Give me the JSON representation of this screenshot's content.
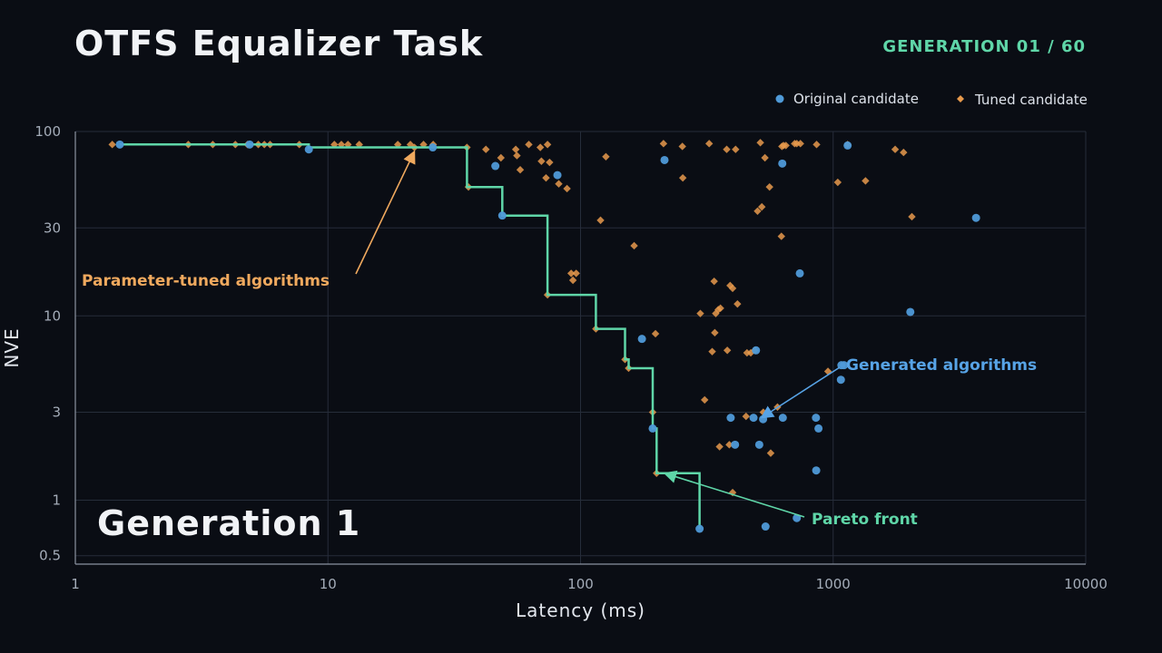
{
  "header": {
    "title": "OTFS Equalizer Task",
    "generation_counter": "GENERATION 01 / 60"
  },
  "colors": {
    "background": "#0a0d14",
    "grid": "#262d3a",
    "original": "#4f9ad8",
    "tuned": "#e89a4c",
    "pareto": "#5fd6a8",
    "tuned_label": "#f0a95e",
    "generated_label": "#57a3e6"
  },
  "chart_data": {
    "type": "scatter",
    "xlabel": "Latency (ms)",
    "ylabel": "NVE",
    "xscale": "log",
    "yscale": "log",
    "xlim": [
      1,
      10000
    ],
    "ylim": [
      0.45,
      100
    ],
    "xticks": [
      1,
      10,
      100,
      1000,
      10000
    ],
    "xtick_labels": [
      "1",
      "10",
      "100",
      "1000",
      "10000"
    ],
    "yticks": [
      0.5,
      1,
      3,
      10,
      30,
      100
    ],
    "ytick_labels": [
      "0.5",
      "1",
      "3",
      "10",
      "30",
      "100"
    ],
    "grid": true,
    "legend_position": "top-right",
    "stage_label": "Generation 1",
    "series": [
      {
        "name": "Original candidate",
        "marker": "circle",
        "points": [
          [
            1.5,
            85
          ],
          [
            4.9,
            85
          ],
          [
            8.4,
            80
          ],
          [
            26,
            82
          ],
          [
            46,
            65
          ],
          [
            49,
            35
          ],
          [
            81,
            58
          ],
          [
            175,
            7.5
          ],
          [
            193,
            2.45
          ],
          [
            215,
            70
          ],
          [
            296,
            0.7
          ],
          [
            393,
            2.8
          ],
          [
            409,
            2.0
          ],
          [
            484,
            2.8
          ],
          [
            495,
            6.5
          ],
          [
            510,
            2.0
          ],
          [
            528,
            2.75
          ],
          [
            540,
            0.72
          ],
          [
            629,
            67
          ],
          [
            632,
            2.8
          ],
          [
            718,
            0.8
          ],
          [
            738,
            17
          ],
          [
            855,
            2.8
          ],
          [
            857,
            1.45
          ],
          [
            875,
            2.45
          ],
          [
            1073,
            4.5
          ],
          [
            1078,
            5.4
          ],
          [
            1104,
            5.4
          ],
          [
            1141,
            84
          ],
          [
            2021,
            10.5
          ],
          [
            3679,
            34
          ]
        ]
      },
      {
        "name": "Tuned candidate",
        "marker": "diamond",
        "points": [
          [
            1.4,
            85
          ],
          [
            2.8,
            85
          ],
          [
            3.5,
            85
          ],
          [
            4.3,
            85
          ],
          [
            4.8,
            85
          ],
          [
            5.3,
            85
          ],
          [
            5.6,
            85
          ],
          [
            5.9,
            85
          ],
          [
            7.7,
            85
          ],
          [
            10.6,
            85
          ],
          [
            11.3,
            85
          ],
          [
            12.0,
            85
          ],
          [
            13.3,
            85
          ],
          [
            18.9,
            85
          ],
          [
            21.2,
            85
          ],
          [
            22.0,
            82
          ],
          [
            23.9,
            85
          ],
          [
            26.1,
            85
          ],
          [
            35.5,
            82
          ],
          [
            36.0,
            50
          ],
          [
            42.2,
            80
          ],
          [
            48.4,
            72
          ],
          [
            55.4,
            80
          ],
          [
            56.0,
            74
          ],
          [
            57.7,
            62
          ],
          [
            62.4,
            85
          ],
          [
            69.3,
            82
          ],
          [
            70.0,
            69
          ],
          [
            73.0,
            56
          ],
          [
            74.0,
            85
          ],
          [
            75.4,
            68
          ],
          [
            74.0,
            13
          ],
          [
            82.0,
            52
          ],
          [
            88.4,
            49
          ],
          [
            91.8,
            17
          ],
          [
            93.3,
            15.6
          ],
          [
            96.1,
            17
          ],
          [
            115,
            8.5
          ],
          [
            120,
            33
          ],
          [
            126,
            73
          ],
          [
            150,
            5.8
          ],
          [
            155,
            5.2
          ],
          [
            163,
            24
          ],
          [
            193,
            3.0
          ],
          [
            198,
            8
          ],
          [
            200,
            1.4
          ],
          [
            213,
            86
          ],
          [
            253,
            83
          ],
          [
            254,
            56
          ],
          [
            298,
            10.3
          ],
          [
            310,
            3.5
          ],
          [
            323,
            86
          ],
          [
            332,
            6.4
          ],
          [
            338,
            15.4
          ],
          [
            340,
            8.1
          ],
          [
            343,
            10.3
          ],
          [
            351,
            10.8
          ],
          [
            355,
            1.95
          ],
          [
            358,
            11
          ],
          [
            379,
            80
          ],
          [
            381,
            6.5
          ],
          [
            388,
            2.0
          ],
          [
            391,
            14.6
          ],
          [
            400,
            14.1
          ],
          [
            400,
            1.1
          ],
          [
            411,
            80
          ],
          [
            418,
            11.6
          ],
          [
            452,
            2.85
          ],
          [
            456,
            6.3
          ],
          [
            472,
            6.3
          ],
          [
            489,
            6.5
          ],
          [
            502,
            37
          ],
          [
            515,
            87
          ],
          [
            522,
            39
          ],
          [
            529,
            3.0
          ],
          [
            537,
            72
          ],
          [
            560,
            50
          ],
          [
            566,
            1.8
          ],
          [
            602,
            3.2
          ],
          [
            624,
            27
          ],
          [
            627,
            83
          ],
          [
            636,
            84
          ],
          [
            650,
            84
          ],
          [
            704,
            86
          ],
          [
            718,
            86
          ],
          [
            742,
            86
          ],
          [
            860,
            85
          ],
          [
            954,
            5.0
          ],
          [
            1043,
            53
          ],
          [
            1141,
            85
          ],
          [
            1343,
            54
          ],
          [
            1760,
            80
          ],
          [
            1900,
            77
          ],
          [
            2050,
            34.5
          ]
        ]
      }
    ],
    "pareto_front": {
      "name": "Pareto front",
      "steps": [
        [
          1.5,
          85
        ],
        [
          8.4,
          85
        ],
        [
          8.4,
          82
        ],
        [
          35.5,
          82
        ],
        [
          35.5,
          50
        ],
        [
          49,
          50
        ],
        [
          49,
          35
        ],
        [
          74,
          35
        ],
        [
          74,
          13
        ],
        [
          115,
          13
        ],
        [
          115,
          8.5
        ],
        [
          150,
          8.5
        ],
        [
          150,
          5.8
        ],
        [
          155,
          5.8
        ],
        [
          155,
          5.2
        ],
        [
          193,
          5.2
        ],
        [
          193,
          3.0
        ],
        [
          193,
          2.45
        ],
        [
          200,
          2.45
        ],
        [
          200,
          1.4
        ],
        [
          296,
          1.4
        ],
        [
          296,
          0.7
        ]
      ]
    },
    "annotations": [
      {
        "text": "Parameter-tuned algorithms",
        "color_key": "tuned_label",
        "target": [
          22,
          78
        ]
      },
      {
        "text": "Generated algorithms",
        "color_key": "generated_label",
        "target": [
          520,
          2.8
        ]
      },
      {
        "text": "Pareto front",
        "color_key": "pareto",
        "target": [
          215,
          1.4
        ]
      }
    ]
  }
}
